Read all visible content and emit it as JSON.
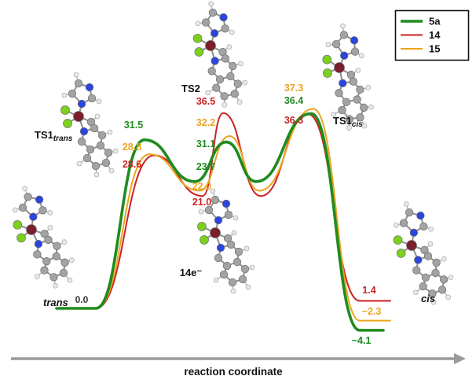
{
  "figure": {
    "labels": {
      "ts1_main": "TS1",
      "ts1trans_sub": "trans",
      "ts1cis_sub": "cis",
      "ts2": "TS2",
      "intermediate": "14e⁻",
      "trans": "trans",
      "cis": "cis",
      "origin_value": "0.0"
    }
  },
  "chart_data": {
    "type": "line",
    "title": "",
    "xlabel": "reaction coordinate",
    "stations": [
      "trans",
      "TS1trans",
      "14e- intermediate",
      "TS2",
      "14e- intermediate",
      "TS1cis",
      "cis"
    ],
    "legend_position": "top-right",
    "grid": false,
    "series": [
      {
        "name": "5a",
        "color": "#1f8b1f",
        "line_width": 3.6,
        "energies": {
          "trans": 0.0,
          "TS1trans": 31.5,
          "intermediate": 23.7,
          "TS2": 31.1,
          "TS1cis": 36.4,
          "cis": -4.1
        }
      },
      {
        "name": "14",
        "color": "#cc2222",
        "line_width": 2.0,
        "energies": {
          "trans": 0.0,
          "TS1trans": 28.6,
          "intermediate": 21.0,
          "TS2": 36.5,
          "TS1cis": 36.3,
          "cis": 1.4
        }
      },
      {
        "name": "15",
        "color": "#eaa41e",
        "line_width": 2.0,
        "energies": {
          "trans": 0.0,
          "TS1trans": 28.8,
          "intermediate": 22.0,
          "TS2": 32.2,
          "TS1cis": 37.3,
          "cis": -2.3
        }
      }
    ]
  },
  "molecules": [
    "trans",
    "TS1trans",
    "TS2",
    "14e",
    "TS1cis",
    "cis"
  ],
  "molecule_colors": {
    "metal": "#7a1f2b",
    "chlorine": "#7cd11c",
    "nitrogen": "#2b45e0",
    "carbon": "#a3a3a3",
    "hydrogen": "#e9e9e9"
  }
}
